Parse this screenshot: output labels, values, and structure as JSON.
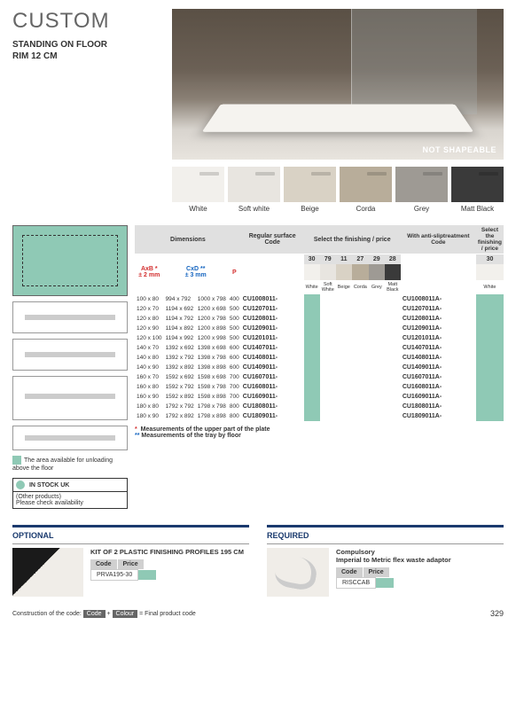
{
  "header": {
    "title": "CUSTOM",
    "subtitle_line1": "STANDING ON FLOOR",
    "subtitle_line2": "RIM 12 CM",
    "hero_label": "NOT SHAPEABLE"
  },
  "swatches": [
    {
      "name": "White",
      "class": "sw-white"
    },
    {
      "name": "Soft white",
      "class": "sw-soft"
    },
    {
      "name": "Beige",
      "class": "sw-beige"
    },
    {
      "name": "Corda",
      "class": "sw-corda"
    },
    {
      "name": "Grey",
      "class": "sw-grey"
    },
    {
      "name": "Matt Black",
      "class": "sw-black"
    }
  ],
  "colors": {
    "accent_green": "#8fc9b5",
    "header_blue": "#1a3a6e",
    "red": "#d32f2f",
    "blue": "#1565c0"
  },
  "table": {
    "headers": {
      "dimensions": "Dimensions",
      "regular_code": "Regular surface Code",
      "select_finish": "Select the finishing / price",
      "anti_slip": "With anti-sliptreatment Code",
      "select2": "Select the finishing / price"
    },
    "dim_sub": {
      "axb": "AxB *",
      "axb_tol": "± 2 mm",
      "cxd": "CxD **",
      "cxd_tol": "± 3 mm",
      "p": "P"
    },
    "finish_codes": [
      "30",
      "79",
      "11",
      "27",
      "29",
      "28"
    ],
    "finish_names": [
      "White",
      "Soft White",
      "Beige",
      "Corda",
      "Grey",
      "Matt Black"
    ],
    "finish_right": "30",
    "finish_right_name": "White",
    "rows": [
      {
        "axb": "100 x 80",
        "cxd": "994 x 792",
        "cxd2": "1000 x 798",
        "p": "400",
        "code": "CU1008011-",
        "anti": "CU1008011A-"
      },
      {
        "axb": "120 x 70",
        "cxd": "1194 x 692",
        "cxd2": "1200 x 698",
        "p": "500",
        "code": "CU1207011-",
        "anti": "CU1207011A-"
      },
      {
        "axb": "120 x 80",
        "cxd": "1194 x 792",
        "cxd2": "1200 x 798",
        "p": "500",
        "code": "CU1208011-",
        "anti": "CU1208011A-"
      },
      {
        "axb": "120 x 90",
        "cxd": "1194 x 892",
        "cxd2": "1200 x 898",
        "p": "500",
        "code": "CU1209011-",
        "anti": "CU1209011A-"
      },
      {
        "axb": "120 x 100",
        "cxd": "1194 x 992",
        "cxd2": "1200 x 998",
        "p": "500",
        "code": "CU1201011-",
        "anti": "CU1201011A-"
      },
      {
        "axb": "140 x 70",
        "cxd": "1392 x 692",
        "cxd2": "1398 x 698",
        "p": "600",
        "code": "CU1407011-",
        "anti": "CU1407011A-"
      },
      {
        "axb": "140 x 80",
        "cxd": "1392 x 792",
        "cxd2": "1398 x 798",
        "p": "600",
        "code": "CU1408011-",
        "anti": "CU1408011A-"
      },
      {
        "axb": "140 x 90",
        "cxd": "1392 x 892",
        "cxd2": "1398 x 898",
        "p": "600",
        "code": "CU1409011-",
        "anti": "CU1409011A-"
      },
      {
        "axb": "160 x 70",
        "cxd": "1592 x 692",
        "cxd2": "1598 x 698",
        "p": "700",
        "code": "CU1607011-",
        "anti": "CU1607011A-"
      },
      {
        "axb": "160 x 80",
        "cxd": "1592 x 792",
        "cxd2": "1598 x 798",
        "p": "700",
        "code": "CU1608011-",
        "anti": "CU1608011A-"
      },
      {
        "axb": "160 x 90",
        "cxd": "1592 x 892",
        "cxd2": "1598 x 898",
        "p": "700",
        "code": "CU1609011-",
        "anti": "CU1609011A-"
      },
      {
        "axb": "180 x 80",
        "cxd": "1792 x 792",
        "cxd2": "1798 x 798",
        "p": "800",
        "code": "CU1808011-",
        "anti": "CU1808011A-"
      },
      {
        "axb": "180 x 90",
        "cxd": "1792 x 892",
        "cxd2": "1798 x 898",
        "p": "800",
        "code": "CU1809011-",
        "anti": "CU1809011A-"
      }
    ],
    "note1": "Measurements of the upper part of the plate",
    "note2": "Measurements of the tray by floor"
  },
  "side": {
    "legend": "The area available for unloading above the floor",
    "stock_header": "IN STOCK UK",
    "stock_sub1": "(Other products)",
    "stock_sub2": "Please check availability"
  },
  "optional": {
    "title": "OPTIONAL",
    "item": "KIT OF 2 PLASTIC FINISHING PROFILES 195 CM",
    "code_hdr": "Code",
    "price_hdr": "Price",
    "code": "PRVA195-30"
  },
  "required": {
    "title": "REQUIRED",
    "item1": "Compulsory",
    "item2": "Imperial to Metric flex waste adaptor",
    "code_hdr": "Code",
    "price_hdr": "Price",
    "code": "RISCCAB"
  },
  "footer": {
    "construction": "Construction of the code:",
    "code_chip": "Code",
    "plus": "+",
    "colour_chip": "Colour",
    "equals": "=",
    "final": "Final product code",
    "page": "329"
  }
}
